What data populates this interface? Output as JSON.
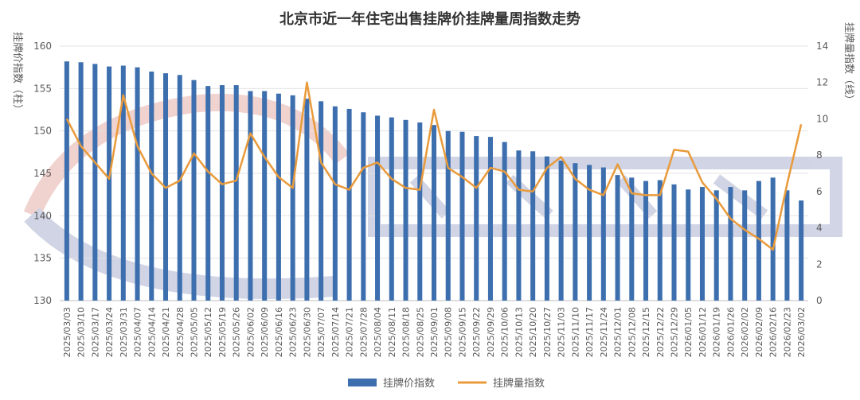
{
  "chart_data": {
    "type": "bar+line",
    "title": "北京市近一年住宅出售挂牌价挂牌量周指数走势",
    "ylabel_left": "挂牌价指数（柱）",
    "ylabel_right": "挂牌量指数（线）",
    "ylim_left": [
      130,
      160
    ],
    "yticks_left": [
      "130",
      "135",
      "140",
      "145",
      "150",
      "155",
      "160"
    ],
    "ylim_right": [
      0,
      14
    ],
    "yticks_right": [
      "0",
      "2",
      "4",
      "6",
      "8",
      "10",
      "12",
      "14"
    ],
    "grid": true,
    "legend_position": "bottom",
    "categories": [
      "2025/03/03",
      "2025/03/10",
      "2025/03/17",
      "2025/03/24",
      "2025/03/31",
      "2025/04/07",
      "2025/04/14",
      "2025/04/21",
      "2025/04/28",
      "2025/05/05",
      "2025/05/12",
      "2025/05/19",
      "2025/05/26",
      "2025/06/02",
      "2025/06/09",
      "2025/06/16",
      "2025/06/23",
      "2025/06/30",
      "2025/07/07",
      "2025/07/14",
      "2025/07/21",
      "2025/07/28",
      "2025/08/04",
      "2025/08/11",
      "2025/08/18",
      "2025/08/25",
      "2025/09/01",
      "2025/09/08",
      "2025/09/15",
      "2025/09/22",
      "2025/09/29",
      "2025/10/06",
      "2025/10/13",
      "2025/10/20",
      "2025/10/27",
      "2025/11/03",
      "2025/11/10",
      "2025/11/17",
      "2025/11/24",
      "2025/12/01",
      "2025/12/08",
      "2025/12/15",
      "2025/12/22",
      "2025/12/29",
      "2026/01/05",
      "2026/01/12",
      "2026/01/19",
      "2026/01/26",
      "2026/02/02",
      "2026/02/09",
      "2026/02/16",
      "2026/02/23",
      "2026/03/02"
    ],
    "series": [
      {
        "name": "挂牌价指数",
        "type": "bar",
        "axis": "left",
        "color": "#3D6FAE",
        "values": [
          158.2,
          158.1,
          157.9,
          157.6,
          157.7,
          157.5,
          157.0,
          156.8,
          156.6,
          156.0,
          155.3,
          155.4,
          155.4,
          154.7,
          154.7,
          154.4,
          154.2,
          153.8,
          153.5,
          152.9,
          152.6,
          152.2,
          151.8,
          151.6,
          151.3,
          151.0,
          150.7,
          150.0,
          149.9,
          149.4,
          149.3,
          148.7,
          147.7,
          147.6,
          147.0,
          146.5,
          146.2,
          146.0,
          145.7,
          144.8,
          144.5,
          144.1,
          144.2,
          143.7,
          143.1,
          143.4,
          143.0,
          143.4,
          143.0,
          144.1,
          144.5,
          143.0,
          141.8
        ]
      },
      {
        "name": "挂牌量指数",
        "type": "line",
        "axis": "right",
        "color": "#E99B3C",
        "values": [
          10.0,
          8.5,
          7.6,
          6.7,
          11.3,
          8.5,
          7.0,
          6.2,
          6.6,
          8.1,
          7.1,
          6.4,
          6.6,
          9.2,
          7.9,
          6.8,
          6.2,
          12.0,
          7.6,
          6.4,
          6.1,
          7.3,
          7.6,
          6.7,
          6.2,
          6.1,
          10.5,
          7.3,
          6.8,
          6.2,
          7.3,
          7.1,
          6.1,
          6.0,
          7.3,
          7.9,
          6.7,
          6.1,
          5.8,
          7.5,
          5.9,
          5.8,
          5.8,
          8.3,
          8.2,
          6.5,
          5.6,
          4.5,
          3.9,
          3.4,
          2.8,
          6.4,
          9.7
        ]
      }
    ]
  }
}
